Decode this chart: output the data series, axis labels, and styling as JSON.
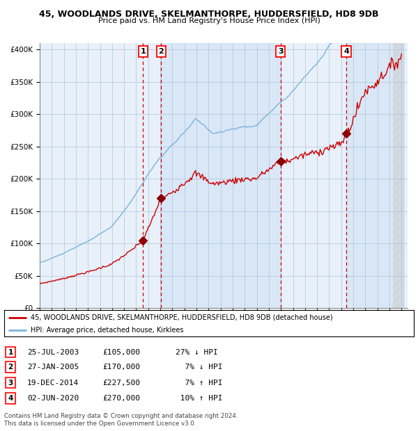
{
  "title": "45, WOODLANDS DRIVE, SKELMANTHORPE, HUDDERSFIELD, HD8 9DB",
  "subtitle": "Price paid vs. HM Land Registry's House Price Index (HPI)",
  "legend_line1": "45, WOODLANDS DRIVE, SKELMANTHORPE, HUDDERSFIELD, HD8 9DB (detached house)",
  "legend_line2": "HPI: Average price, detached house, Kirklees",
  "footer1": "Contains HM Land Registry data © Crown copyright and database right 2024.",
  "footer2": "This data is licensed under the Open Government Licence v3.0.",
  "transactions": [
    {
      "id": 1,
      "date_str": "25-JUL-2003",
      "price": 105000,
      "price_str": "£105,000",
      "pct_str": "27% ↓ HPI",
      "year": 2003,
      "month": 7,
      "day": 25
    },
    {
      "id": 2,
      "date_str": "27-JAN-2005",
      "price": 170000,
      "price_str": "£170,000",
      "pct_str": "  7% ↓ HPI",
      "year": 2005,
      "month": 1,
      "day": 27
    },
    {
      "id": 3,
      "date_str": "19-DEC-2014",
      "price": 227500,
      "price_str": "£227,500",
      "pct_str": "  7% ↑ HPI",
      "year": 2014,
      "month": 12,
      "day": 19
    },
    {
      "id": 4,
      "date_str": "02-JUN-2020",
      "price": 270000,
      "price_str": "£270,000",
      "pct_str": " 10% ↑ HPI",
      "year": 2020,
      "month": 6,
      "day": 2
    }
  ],
  "hpi_color": "#7ab4d8",
  "price_color": "#cc0000",
  "marker_color": "#8b0000",
  "dashed_line_color": "#cc0000",
  "shade_color": "#cce0f5",
  "background_color": "#e8f0fa",
  "grid_color": "#b0c4d8",
  "yticks": [
    0,
    50000,
    100000,
    150000,
    200000,
    250000,
    300000,
    350000,
    400000
  ],
  "ylabels": [
    "£0",
    "£50K",
    "£100K",
    "£150K",
    "£200K",
    "£250K",
    "£300K",
    "£350K",
    "£400K"
  ]
}
